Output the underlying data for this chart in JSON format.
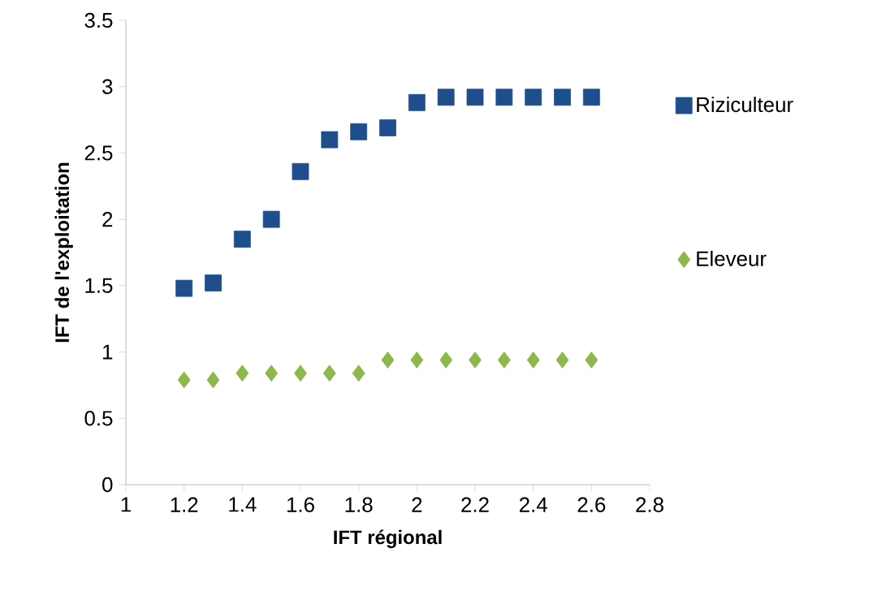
{
  "chart_data": {
    "type": "scatter",
    "xlabel": "IFT régional",
    "ylabel": "IFT de l'exploitation",
    "x": [
      1.2,
      1.3,
      1.4,
      1.5,
      1.6,
      1.7,
      1.8,
      1.9,
      2.0,
      2.1,
      2.2,
      2.3,
      2.4,
      2.5,
      2.6
    ],
    "series": [
      {
        "name": "Riziculteur",
        "color": "#1f4e8c",
        "marker": "square",
        "values": [
          1.48,
          1.52,
          1.85,
          2.0,
          2.36,
          2.6,
          2.66,
          2.69,
          2.88,
          2.92,
          2.92,
          2.92,
          2.92,
          2.92,
          2.92
        ]
      },
      {
        "name": "Eleveur",
        "color": "#8db84a",
        "marker": "diamond",
        "values": [
          0.79,
          0.79,
          0.84,
          0.84,
          0.84,
          0.84,
          0.84,
          0.94,
          0.94,
          0.94,
          0.94,
          0.94,
          0.94,
          0.94,
          0.94
        ]
      }
    ],
    "xlim": [
      1,
      2.8
    ],
    "ylim": [
      0,
      3.5
    ],
    "xticks": [
      1,
      1.2,
      1.4,
      1.6,
      1.8,
      2,
      2.2,
      2.4,
      2.6,
      2.8
    ],
    "yticks": [
      0,
      0.5,
      1,
      1.5,
      2,
      2.5,
      3,
      3.5
    ],
    "grid": false,
    "legend": "right"
  }
}
